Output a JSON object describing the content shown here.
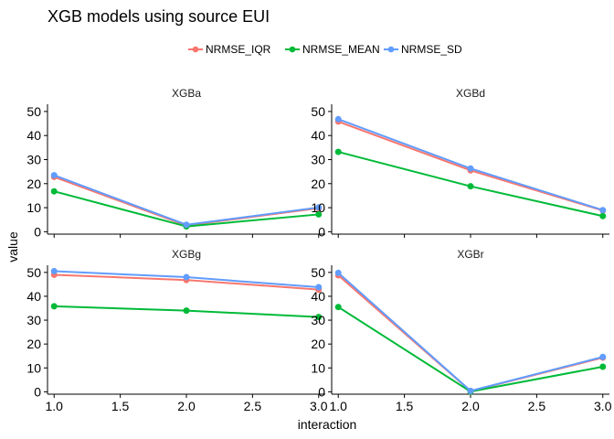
{
  "chart_data": {
    "type": "line",
    "title": "XGB models using source EUI",
    "xlabel": "interaction",
    "ylabel": "value",
    "x": [
      1.0,
      2.0,
      3.0
    ],
    "xlim": [
      0.95,
      3.05
    ],
    "ylim": [
      -1,
      53
    ],
    "x_ticks": [
      "1.0",
      "1.5",
      "2.0",
      "2.5",
      "3.0"
    ],
    "y_ticks": [
      "0",
      "10",
      "20",
      "30",
      "40",
      "50"
    ],
    "legend_position": "top",
    "grid": false,
    "colors": {
      "NRMSE_IQR": "#F8766D",
      "NRMSE_MEAN": "#00BA38",
      "NRMSE_SD": "#619CFF"
    },
    "legend": [
      "NRMSE_IQR",
      "NRMSE_MEAN",
      "NRMSE_SD"
    ],
    "panels": [
      {
        "label": "XGBa",
        "series": [
          {
            "name": "NRMSE_IQR",
            "values": [
              22.8,
              2.6,
              9.8
            ]
          },
          {
            "name": "NRMSE_MEAN",
            "values": [
              16.8,
              2.2,
              7.2
            ]
          },
          {
            "name": "NRMSE_SD",
            "values": [
              23.5,
              2.9,
              10.1
            ]
          }
        ]
      },
      {
        "label": "XGBd",
        "series": [
          {
            "name": "NRMSE_IQR",
            "values": [
              45.8,
              25.5,
              8.8
            ]
          },
          {
            "name": "NRMSE_MEAN",
            "values": [
              33.2,
              18.9,
              6.5
            ]
          },
          {
            "name": "NRMSE_SD",
            "values": [
              46.8,
              26.3,
              9.0
            ]
          }
        ]
      },
      {
        "label": "XGBg",
        "series": [
          {
            "name": "NRMSE_IQR",
            "values": [
              49.0,
              46.8,
              42.8
            ]
          },
          {
            "name": "NRMSE_MEAN",
            "values": [
              35.8,
              34.0,
              31.3
            ]
          },
          {
            "name": "NRMSE_SD",
            "values": [
              50.5,
              48.0,
              43.8
            ]
          }
        ]
      },
      {
        "label": "XGBr",
        "series": [
          {
            "name": "NRMSE_IQR",
            "values": [
              48.8,
              0.3,
              14.3
            ]
          },
          {
            "name": "NRMSE_MEAN",
            "values": [
              35.5,
              0.1,
              10.5
            ]
          },
          {
            "name": "NRMSE_SD",
            "values": [
              49.8,
              0.4,
              14.6
            ]
          }
        ]
      }
    ]
  }
}
